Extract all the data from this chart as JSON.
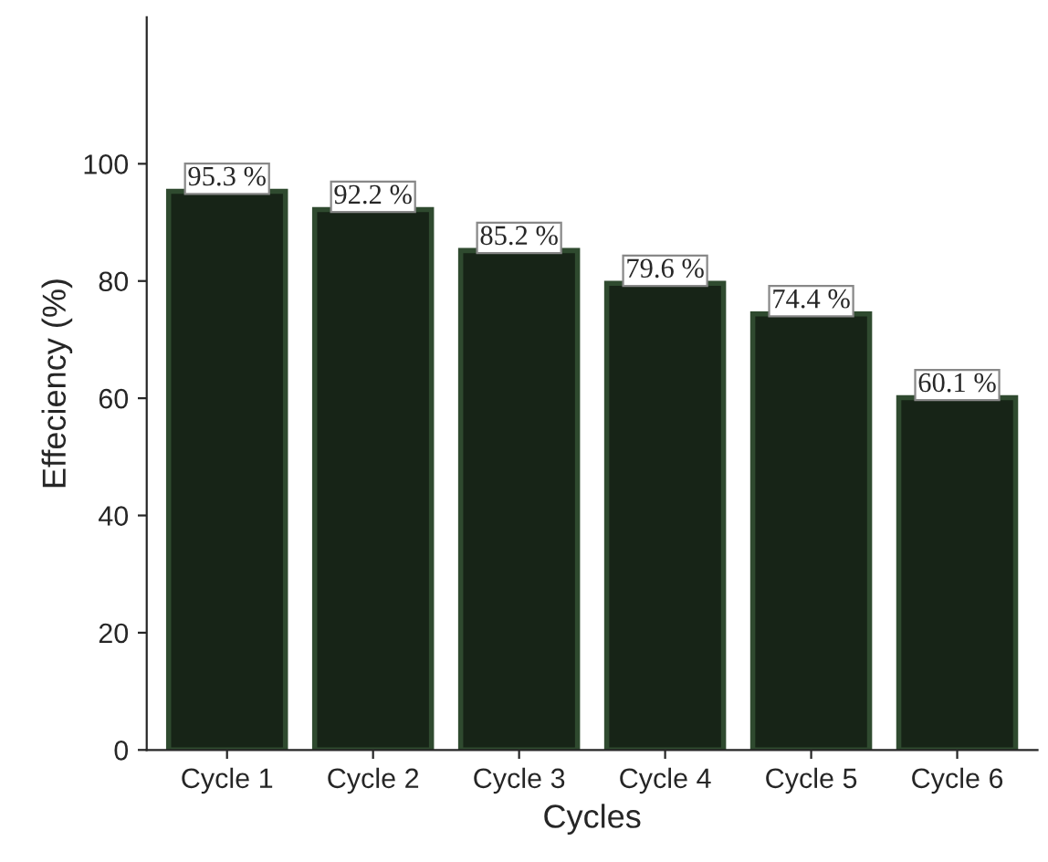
{
  "chart_data": {
    "type": "bar",
    "xlabel": "Cycles",
    "ylabel": "Effeciency (%)",
    "categories": [
      "Cycle 1",
      "Cycle 2",
      "Cycle 3",
      "Cycle 4",
      "Cycle 5",
      "Cycle 6"
    ],
    "values": [
      95.3,
      92.2,
      85.2,
      79.6,
      74.4,
      60.1
    ],
    "value_labels": [
      "95.3 %",
      "92.2 %",
      "85.2 %",
      "79.6 %",
      "74.4 %",
      "60.1 %"
    ],
    "color": "#172417",
    "ylim": [
      0,
      125
    ],
    "yticks": [
      0,
      20,
      40,
      60,
      80,
      100
    ],
    "grid": false,
    "legend": false
  }
}
